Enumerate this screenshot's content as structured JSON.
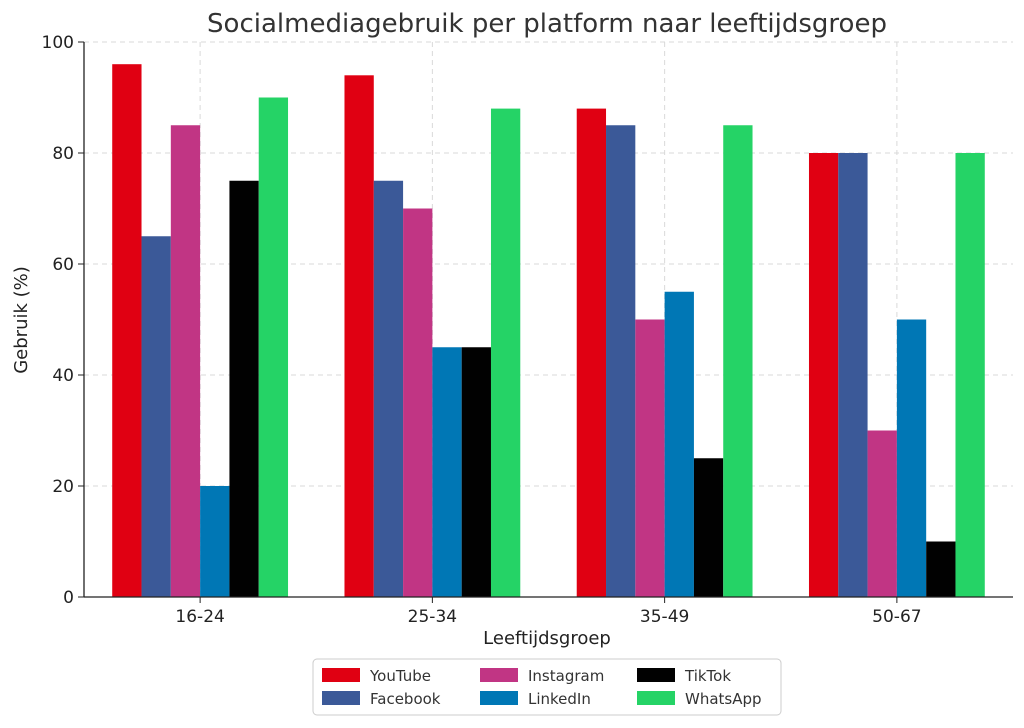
{
  "chart_data": {
    "type": "bar",
    "title": "Socialmediagebruik per platform naar leeftijdsgroep",
    "xlabel": "Leeftijdsgroep",
    "ylabel": "Gebruik (%)",
    "ylim": [
      0,
      100
    ],
    "yticks": [
      0,
      20,
      40,
      60,
      80,
      100
    ],
    "grid": true,
    "legend_position": "bottom-center",
    "categories": [
      "16-24",
      "25-34",
      "35-49",
      "50-67"
    ],
    "series": [
      {
        "name": "YouTube",
        "color": "#e00012",
        "values": [
          96,
          94,
          88,
          80
        ]
      },
      {
        "name": "Facebook",
        "color": "#3b5998",
        "values": [
          65,
          75,
          85,
          80
        ]
      },
      {
        "name": "Instagram",
        "color": "#c13584",
        "values": [
          85,
          70,
          50,
          30
        ]
      },
      {
        "name": "LinkedIn",
        "color": "#0077b5",
        "values": [
          20,
          45,
          55,
          50
        ]
      },
      {
        "name": "TikTok",
        "color": "#010101",
        "values": [
          75,
          45,
          25,
          10
        ]
      },
      {
        "name": "WhatsApp",
        "color": "#25d366",
        "values": [
          90,
          88,
          85,
          80
        ]
      }
    ]
  }
}
